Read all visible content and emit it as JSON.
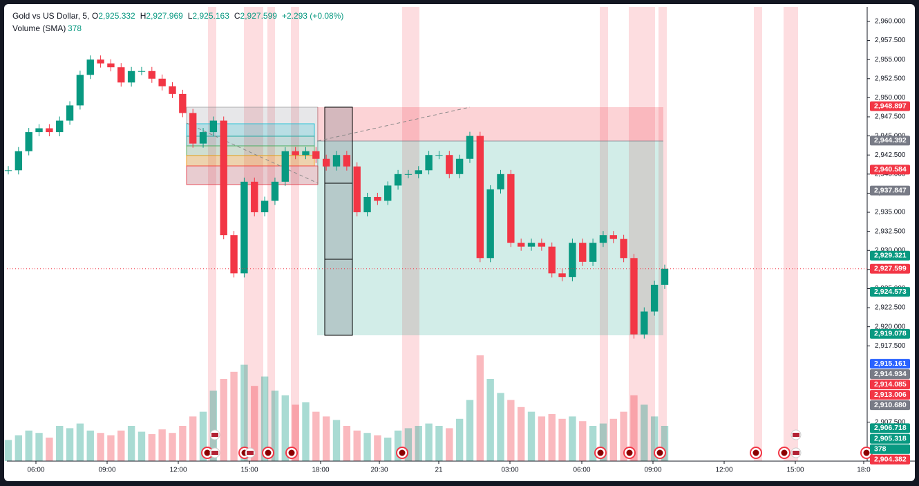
{
  "chart_data": {
    "type": "candlestick",
    "header": {
      "symbol": "Gold vs US Dollar, 5,",
      "open_label": "O",
      "open": "2,925.332",
      "high_label": "H",
      "high": "2,927.969",
      "low_label": "L",
      "low": "2,925.163",
      "close_label": "C",
      "close": "2,927.599",
      "change": "+2.293 (+0.08%)"
    },
    "indicator": {
      "name": "Volume (SMA)",
      "value": "378"
    },
    "current_price": 2927.599,
    "up_color": "#089981",
    "down_color": "#f23645",
    "closes": [
      2940.5,
      2943,
      2945.5,
      2946,
      2945.5,
      2947,
      2949,
      2953,
      2955,
      2954.5,
      2954,
      2952,
      2953.5,
      2953.5,
      2952.5,
      2951.5,
      2950.5,
      2948,
      2944,
      2945.5,
      2947,
      2932,
      2927,
      2939,
      2935,
      2936.5,
      2939,
      2943,
      2942.5,
      2943,
      2942,
      2941,
      2942.5,
      2941,
      2935,
      2937,
      2936.5,
      2938.5,
      2940,
      2940,
      2940.5,
      2942.5,
      2942.5,
      2940,
      2942,
      2945,
      2929,
      2938,
      2940,
      2931,
      2930.5,
      2931,
      2930.5,
      2927,
      2926.5,
      2931,
      2928.5,
      2931,
      2932,
      2931.5,
      2929,
      2919,
      2922,
      2925.5,
      2927.599
    ],
    "volumes": [
      180,
      220,
      260,
      240,
      200,
      300,
      280,
      320,
      260,
      240,
      220,
      260,
      300,
      250,
      230,
      270,
      240,
      300,
      380,
      420,
      600,
      700,
      760,
      820,
      640,
      720,
      600,
      560,
      480,
      500,
      420,
      380,
      350,
      300,
      260,
      240,
      220,
      200,
      260,
      280,
      300,
      320,
      300,
      280,
      360,
      520,
      900,
      700,
      580,
      520,
      460,
      420,
      380,
      400,
      360,
      380,
      340,
      300,
      320,
      360,
      420,
      560,
      480,
      380,
      300
    ],
    "ylim": [
      2902.4,
      2961.9
    ],
    "yticks": [
      {
        "value": 2960,
        "label": "2,960.000"
      },
      {
        "value": 2957.5,
        "label": "2,957.500"
      },
      {
        "value": 2955,
        "label": "2,955.000"
      },
      {
        "value": 2952.5,
        "label": "2,952.500"
      },
      {
        "value": 2950,
        "label": "2,950.000"
      },
      {
        "value": 2947.5,
        "label": "2,947.500"
      },
      {
        "value": 2945,
        "label": "2,945.000"
      },
      {
        "value": 2942.5,
        "label": "2,942.500"
      },
      {
        "value": 2940,
        "label": "2,940.000"
      },
      {
        "value": 2937.5,
        "label": "2,937.500"
      },
      {
        "value": 2935,
        "label": "2,935.000"
      },
      {
        "value": 2932.5,
        "label": "2,932.500"
      },
      {
        "value": 2930,
        "label": "2,930.000"
      },
      {
        "value": 2927.5,
        "label": "2,927.500"
      },
      {
        "value": 2925,
        "label": "2,925.000"
      },
      {
        "value": 2922.5,
        "label": "2,922.500"
      },
      {
        "value": 2920,
        "label": "2,920.000"
      },
      {
        "value": 2917.5,
        "label": "2,917.500"
      },
      {
        "value": 2907.5,
        "label": "2,907.500"
      }
    ],
    "xticks": [
      "06:00",
      "09:00",
      "12:00",
      "15:00",
      "18:00",
      "20:30",
      "21",
      "03:00",
      "06:00",
      "09:00",
      "12:00",
      "15:00",
      "18:0"
    ],
    "price_tags": [
      {
        "value": 2948.897,
        "label": "2,948.897",
        "color": "#f23645"
      },
      {
        "value": 2944.392,
        "label": "2,944.392",
        "color": "#787b86"
      },
      {
        "value": 2940.584,
        "label": "2,940.584",
        "color": "#f23645"
      },
      {
        "value": 2937.847,
        "label": "2,937.847",
        "color": "#787b86"
      },
      {
        "value": 2929.321,
        "label": "2,929.321",
        "color": "#089981"
      },
      {
        "value": 2927.599,
        "label": "2,927.599",
        "color": "#f23645"
      },
      {
        "value": 2924.573,
        "label": "2,924.573",
        "color": "#089981"
      },
      {
        "value": 2919.078,
        "label": "2,919.078",
        "color": "#089981"
      },
      {
        "value": 2915.161,
        "label": "2,915.161",
        "color": "#2962ff"
      },
      {
        "value": 2914.934,
        "label": "2,914.934",
        "color": "#787b86"
      },
      {
        "value": 2914.085,
        "label": "2,914.085",
        "color": "#f23645"
      },
      {
        "value": 2913.006,
        "label": "2,913.006",
        "color": "#f23645"
      },
      {
        "value": 2910.68,
        "label": "2,910.680",
        "color": "#787b86"
      },
      {
        "value": 2906.718,
        "label": "2,906.718",
        "color": "#089981"
      },
      {
        "value": 2905.318,
        "label": "2,905.318",
        "color": "#089981"
      },
      {
        "value": 378,
        "label": "378",
        "color": "#089981",
        "scale": "volume"
      },
      {
        "value": 2904.382,
        "label": "2,904.382",
        "color": "#f23645"
      }
    ]
  }
}
